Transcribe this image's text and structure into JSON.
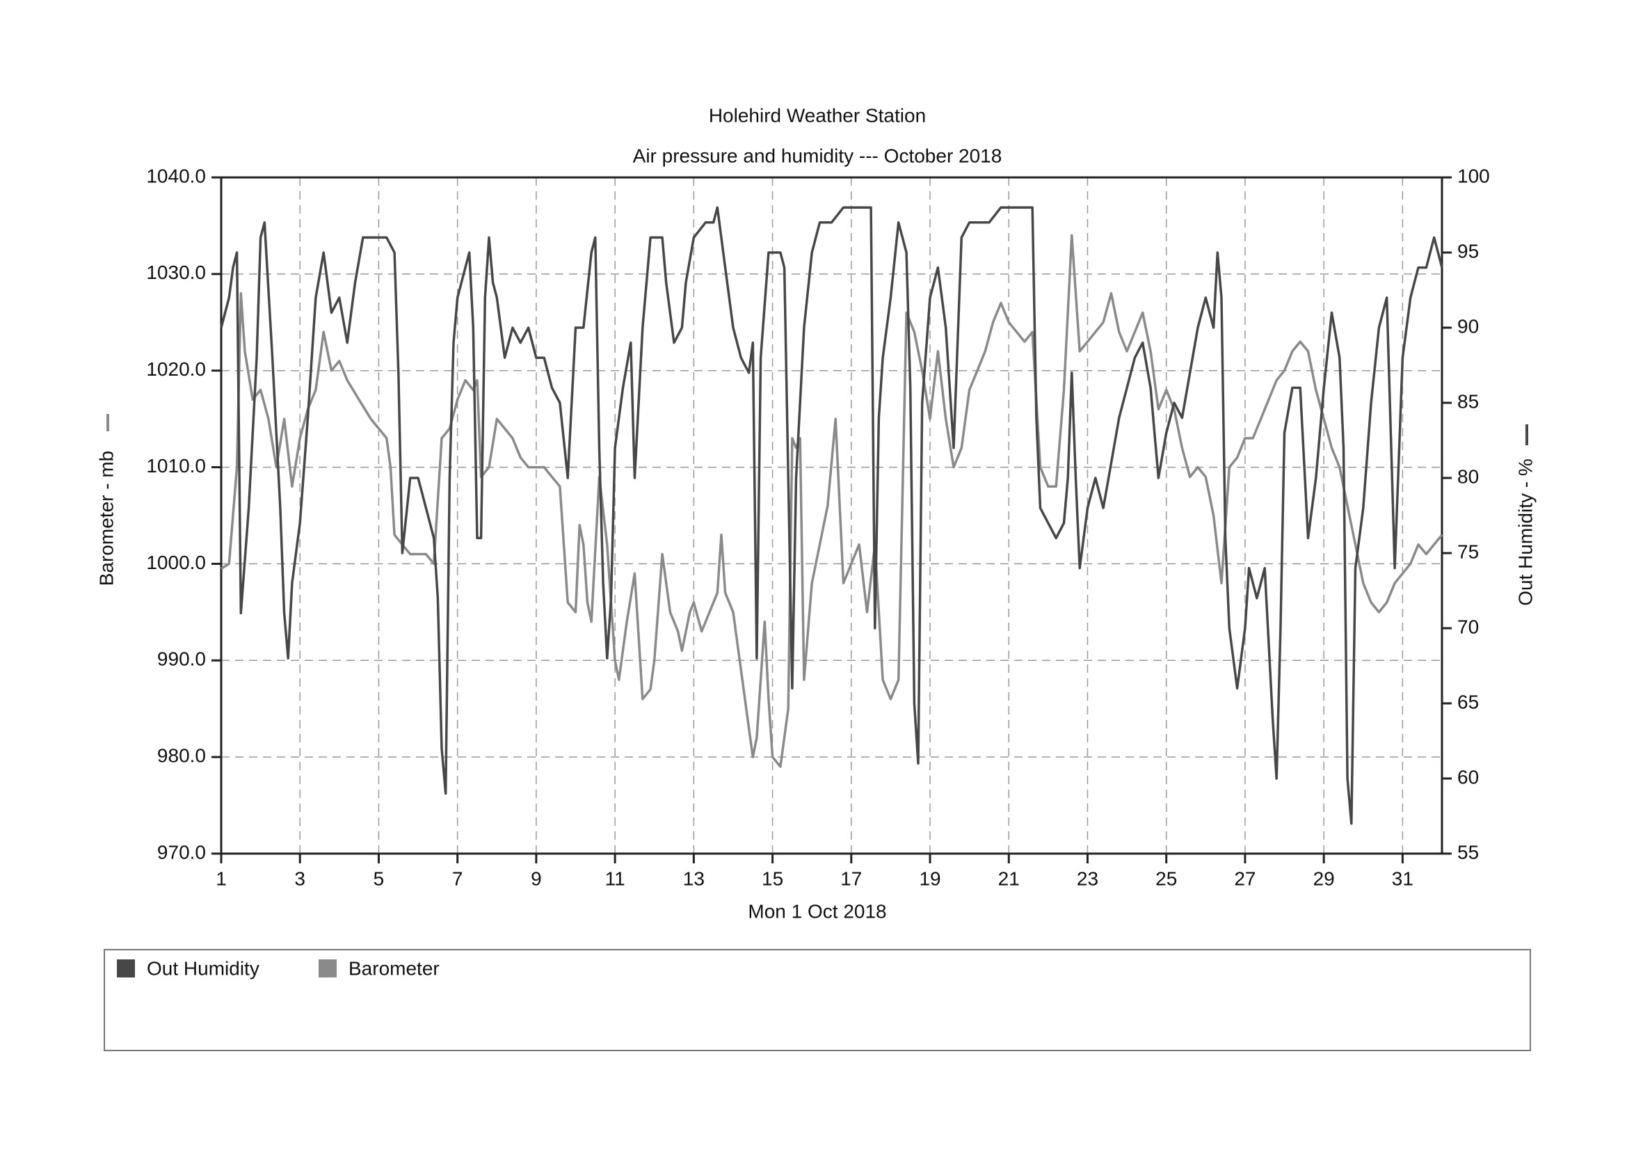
{
  "chart_data": {
    "type": "line",
    "title": "Holehird Weather Station",
    "subtitle": "Air pressure and humidity --- October 2018",
    "x_label": "Mon 1 Oct 2018",
    "y_label": "Barometer - mb",
    "y2_label": "Out Humidity - %",
    "xlim": [
      1,
      32
    ],
    "xticks": [
      1,
      3,
      5,
      7,
      9,
      11,
      13,
      15,
      17,
      19,
      21,
      23,
      25,
      27,
      29,
      31
    ],
    "ylim": [
      970,
      1040
    ],
    "yticks": [
      {
        "value": 970,
        "label": "970.0"
      },
      {
        "value": 980,
        "label": "980.0"
      },
      {
        "value": 990,
        "label": "990.0"
      },
      {
        "value": 1000,
        "label": "1000.0"
      },
      {
        "value": 1010,
        "label": "1010.0"
      },
      {
        "value": 1020,
        "label": "1020.0"
      },
      {
        "value": 1030,
        "label": "1030.0"
      },
      {
        "value": 1040,
        "label": "1040.0"
      }
    ],
    "y2lim": [
      55,
      100
    ],
    "y2ticks": [
      55,
      60,
      65,
      70,
      75,
      80,
      85,
      90,
      95,
      100
    ],
    "grid": true,
    "series": [
      {
        "name": "Out Humidity",
        "color": "#474747",
        "axis": "y2",
        "x": [
          1.0,
          1.2,
          1.3,
          1.4,
          1.5,
          1.7,
          1.9,
          2.0,
          2.1,
          2.3,
          2.5,
          2.6,
          2.7,
          2.8,
          3.0,
          3.2,
          3.4,
          3.6,
          3.8,
          4.0,
          4.2,
          4.4,
          4.6,
          4.8,
          5.0,
          5.2,
          5.4,
          5.5,
          5.6,
          5.8,
          6.0,
          6.2,
          6.4,
          6.5,
          6.6,
          6.7,
          6.8,
          6.9,
          7.0,
          7.2,
          7.3,
          7.4,
          7.5,
          7.6,
          7.7,
          7.8,
          7.9,
          8.0,
          8.2,
          8.4,
          8.6,
          8.8,
          9.0,
          9.2,
          9.4,
          9.6,
          9.8,
          10.0,
          10.2,
          10.4,
          10.5,
          10.6,
          10.7,
          10.8,
          10.9,
          11.0,
          11.2,
          11.4,
          11.5,
          11.7,
          11.9,
          12.0,
          12.2,
          12.3,
          12.5,
          12.7,
          12.8,
          13.0,
          13.3,
          13.5,
          13.6,
          13.8,
          14.0,
          14.2,
          14.4,
          14.5,
          14.6,
          14.7,
          14.9,
          15.0,
          15.2,
          15.3,
          15.5,
          15.6,
          15.8,
          16.0,
          16.2,
          16.5,
          16.8,
          17.0,
          17.2,
          17.5,
          17.6,
          17.7,
          17.8,
          18.0,
          18.2,
          18.4,
          18.5,
          18.6,
          18.7,
          18.8,
          19.0,
          19.2,
          19.4,
          19.6,
          19.8,
          20.0,
          20.3,
          20.5,
          20.8,
          21.0,
          21.3,
          21.6,
          21.7,
          21.8,
          22.0,
          22.2,
          22.4,
          22.5,
          22.6,
          22.7,
          22.8,
          23.0,
          23.2,
          23.4,
          23.6,
          23.8,
          24.0,
          24.2,
          24.4,
          24.6,
          24.8,
          25.0,
          25.2,
          25.4,
          25.6,
          25.8,
          26.0,
          26.2,
          26.3,
          26.4,
          26.5,
          26.6,
          26.8,
          27.0,
          27.1,
          27.3,
          27.5,
          27.7,
          27.8,
          27.9,
          28.0,
          28.2,
          28.4,
          28.6,
          28.8,
          29.0,
          29.2,
          29.4,
          29.5,
          29.6,
          29.7,
          29.8,
          30.0,
          30.2,
          30.4,
          30.6,
          30.8,
          31.0,
          31.2,
          31.4,
          31.6,
          31.8,
          32.0
        ],
        "values": [
          90,
          92,
          94,
          95,
          71,
          78,
          88,
          96,
          97,
          88,
          78,
          71,
          68,
          73,
          77,
          84,
          92,
          95,
          91,
          92,
          89,
          93,
          96,
          96,
          96,
          96,
          95,
          87,
          75,
          80,
          80,
          78,
          76,
          72,
          62,
          59,
          80,
          89,
          92,
          94,
          95,
          90,
          76,
          76,
          92,
          96,
          93,
          92,
          88,
          90,
          89,
          90,
          88,
          88,
          86,
          85,
          80,
          90,
          90,
          95,
          96,
          82,
          73,
          68,
          72,
          82,
          86,
          89,
          80,
          90,
          96,
          96,
          96,
          93,
          89,
          90,
          93,
          96,
          97,
          97,
          98,
          94,
          90,
          88,
          87,
          89,
          68,
          88,
          95,
          95,
          95,
          94,
          66,
          80,
          90,
          95,
          97,
          97,
          98,
          98,
          98,
          98,
          70,
          84,
          88,
          92,
          97,
          95,
          86,
          65,
          61,
          85,
          92,
          94,
          90,
          82,
          96,
          97,
          97,
          97,
          98,
          98,
          98,
          98,
          84,
          78,
          77,
          76,
          77,
          80,
          87,
          80,
          74,
          78,
          80,
          78,
          81,
          84,
          86,
          88,
          89,
          86,
          80,
          83,
          85,
          84,
          87,
          90,
          92,
          90,
          95,
          92,
          76,
          70,
          66,
          70,
          74,
          72,
          74,
          64,
          60,
          70,
          83,
          86,
          86,
          76,
          80,
          86,
          91,
          88,
          82,
          60,
          57,
          74,
          78,
          85,
          90,
          92,
          74,
          88,
          92,
          94,
          94,
          96,
          94
        ]
      },
      {
        "name": "Barometer",
        "color": "#8a8a8a",
        "x": [
          1.0,
          1.2,
          1.4,
          1.5,
          1.6,
          1.8,
          2.0,
          2.2,
          2.4,
          2.6,
          2.8,
          3.0,
          3.2,
          3.4,
          3.6,
          3.8,
          4.0,
          4.2,
          4.5,
          4.8,
          5.0,
          5.2,
          5.3,
          5.4,
          5.6,
          5.8,
          6.0,
          6.2,
          6.4,
          6.6,
          6.8,
          7.0,
          7.2,
          7.4,
          7.5,
          7.6,
          7.8,
          8.0,
          8.2,
          8.4,
          8.6,
          8.8,
          9.0,
          9.2,
          9.4,
          9.6,
          9.8,
          10.0,
          10.1,
          10.2,
          10.3,
          10.4,
          10.6,
          10.8,
          11.0,
          11.1,
          11.3,
          11.5,
          11.7,
          11.9,
          12.0,
          12.2,
          12.4,
          12.6,
          12.7,
          12.9,
          13.0,
          13.2,
          13.4,
          13.6,
          13.7,
          13.8,
          14.0,
          14.2,
          14.4,
          14.5,
          14.6,
          14.8,
          14.9,
          15.0,
          15.2,
          15.4,
          15.5,
          15.6,
          15.7,
          15.8,
          16.0,
          16.2,
          16.4,
          16.6,
          16.8,
          17.0,
          17.2,
          17.4,
          17.6,
          17.8,
          18.0,
          18.2,
          18.4,
          18.6,
          18.8,
          19.0,
          19.2,
          19.4,
          19.6,
          19.8,
          20.0,
          20.2,
          20.4,
          20.6,
          20.8,
          21.0,
          21.2,
          21.4,
          21.6,
          21.8,
          22.0,
          22.2,
          22.4,
          22.6,
          22.7,
          22.8,
          23.0,
          23.2,
          23.4,
          23.6,
          23.8,
          24.0,
          24.2,
          24.4,
          24.6,
          24.8,
          25.0,
          25.2,
          25.4,
          25.6,
          25.8,
          26.0,
          26.2,
          26.4,
          26.6,
          26.8,
          27.0,
          27.2,
          27.4,
          27.6,
          27.8,
          28.0,
          28.2,
          28.4,
          28.6,
          28.8,
          29.0,
          29.2,
          29.4,
          29.6,
          29.8,
          30.0,
          30.2,
          30.4,
          30.6,
          30.8,
          31.0,
          31.2,
          31.4,
          31.6,
          31.8,
          32.0
        ],
        "values": [
          999.5,
          1000,
          1010,
          1028,
          1022,
          1017,
          1018,
          1015,
          1010,
          1015,
          1008,
          1013,
          1016,
          1018,
          1024,
          1020,
          1021,
          1019,
          1017,
          1015,
          1014,
          1013,
          1010,
          1003,
          1002,
          1001,
          1001,
          1001,
          1000,
          1013,
          1014,
          1017,
          1019,
          1018,
          1019,
          1009,
          1010,
          1015,
          1014,
          1013,
          1011,
          1010,
          1010,
          1010,
          1009,
          1008,
          996,
          995,
          1004,
          1002,
          996,
          994,
          1009,
          1002,
          990,
          988,
          994,
          999,
          986,
          987,
          990,
          1001,
          995,
          993,
          991,
          995,
          996,
          993,
          995,
          997,
          1003,
          997,
          995,
          989,
          983,
          980,
          982,
          994,
          986,
          980,
          979,
          985,
          1013,
          1012,
          1013,
          988,
          998,
          1002,
          1006,
          1015,
          998,
          1000,
          1002,
          995,
          1002,
          988,
          986,
          988,
          1026,
          1024,
          1020,
          1015,
          1022,
          1015,
          1010,
          1012,
          1018,
          1020,
          1022,
          1025,
          1027,
          1025,
          1024,
          1023,
          1024,
          1010,
          1008,
          1008,
          1018,
          1034,
          1028,
          1022,
          1023,
          1024,
          1025,
          1028,
          1024,
          1022,
          1024,
          1026,
          1022,
          1016,
          1018,
          1016,
          1012,
          1009,
          1010,
          1009,
          1005,
          998,
          1010,
          1011,
          1013,
          1013,
          1015,
          1017,
          1019,
          1020,
          1022,
          1023,
          1022,
          1018,
          1015,
          1012,
          1010,
          1006,
          1002,
          998,
          996,
          995,
          996,
          998,
          999,
          1000,
          1002,
          1001,
          1002,
          1003
        ]
      }
    ]
  }
}
